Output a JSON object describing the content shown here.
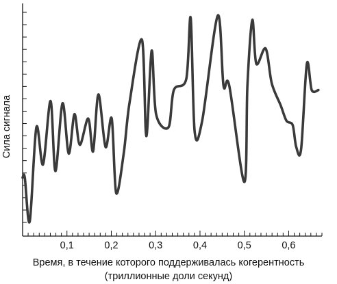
{
  "chart_data": {
    "type": "line",
    "title": "",
    "xlabel": "Время, в течение которого поддерживалась когерентность",
    "xlabel_line2": "(триллионные доли секунд)",
    "ylabel": "Сила сигнала",
    "xlim": [
      0,
      0.675
    ],
    "ylim": [
      0,
      1
    ],
    "x_ticks": [
      0.1,
      0.2,
      0.3,
      0.4,
      0.5,
      0.6
    ],
    "x_tick_labels": [
      "0,1",
      "0,2",
      "0,3",
      "0,4",
      "0,5",
      "0,6"
    ],
    "grid": false,
    "y_tick_count": 18,
    "series": [
      {
        "color": "#3a3a3a",
        "x": [
          0.0,
          0.005,
          0.016,
          0.031,
          0.046,
          0.063,
          0.074,
          0.09,
          0.104,
          0.117,
          0.129,
          0.148,
          0.159,
          0.171,
          0.187,
          0.201,
          0.211,
          0.228,
          0.241,
          0.269,
          0.279,
          0.291,
          0.301,
          0.329,
          0.341,
          0.369,
          0.379,
          0.388,
          0.405,
          0.44,
          0.453,
          0.466,
          0.5,
          0.507,
          0.518,
          0.527,
          0.548,
          0.562,
          0.582,
          0.595,
          0.609,
          0.617,
          0.628,
          0.641,
          0.652,
          0.667
        ],
        "values": [
          0.22,
          0.22,
          0.02,
          0.45,
          0.28,
          0.57,
          0.25,
          0.56,
          0.33,
          0.51,
          0.37,
          0.49,
          0.34,
          0.6,
          0.36,
          0.49,
          0.15,
          0.33,
          0.56,
          0.85,
          0.41,
          0.8,
          0.51,
          0.45,
          0.62,
          0.67,
          0.95,
          0.43,
          0.48,
          0.96,
          0.64,
          0.64,
          0.2,
          0.64,
          0.94,
          0.74,
          0.81,
          0.65,
          0.55,
          0.48,
          0.46,
          0.36,
          0.35,
          0.74,
          0.62,
          0.62
        ]
      }
    ]
  }
}
